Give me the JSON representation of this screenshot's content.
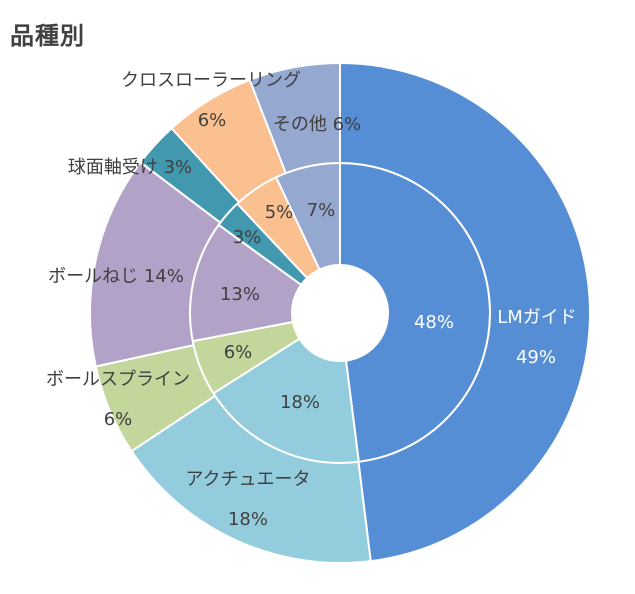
{
  "chart_data": {
    "type": "pie",
    "title": "品種別",
    "categories": [
      "LMガイド",
      "アクチュエータ",
      "ボールスプライン",
      "ボールねじ",
      "球面軸受け",
      "クロスローラーリング",
      "その他"
    ],
    "series": [
      {
        "ring": "inner",
        "values": [
          48,
          18,
          6,
          13,
          3,
          5,
          7
        ]
      },
      {
        "ring": "outer",
        "values": [
          49,
          18,
          6,
          14,
          3,
          6,
          6
        ]
      }
    ],
    "colors": [
      "#558ed5",
      "#93cddd",
      "#c3d69b",
      "#b3a2c7",
      "#4198af",
      "#fac090",
      "#95a8d0"
    ]
  },
  "labels": {
    "outer": {
      "lm_name": "LMガイド",
      "lm_pct": "49%",
      "act_name": "アクチュエータ",
      "act_pct": "18%",
      "spline_name": "ボールスプライン",
      "spline_pct": "6%",
      "screw_text": "ボールねじ 14%",
      "bearing_text": "球面軸受け 3%",
      "cross_name": "クロスローラーリング",
      "cross_pct": "6%",
      "other_text": "その他 6%"
    },
    "inner": {
      "lm": "48%",
      "act": "18%",
      "spline": "6%",
      "screw": "13%",
      "bearing": "3%",
      "cross": "5%",
      "other": "7%"
    }
  }
}
